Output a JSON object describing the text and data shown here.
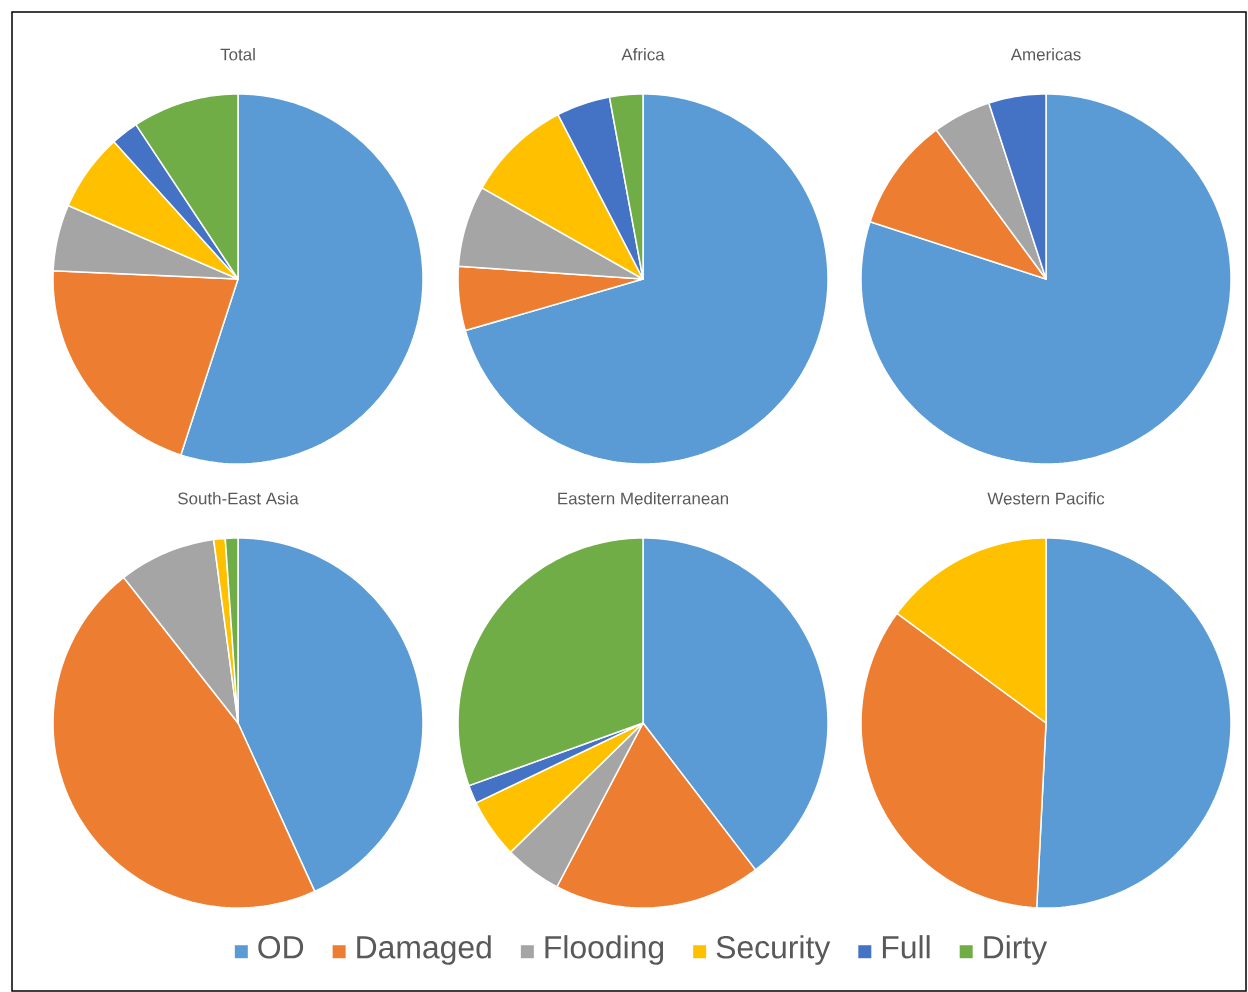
{
  "chart_data": [
    {
      "type": "pie",
      "title": "Total",
      "categories": [
        "OD",
        "Damaged",
        "Flooding",
        "Security",
        "Full",
        "Dirty"
      ],
      "values": [
        55,
        20.7,
        5.8,
        6.8,
        2.4,
        9.3
      ],
      "colors": [
        "#5b9bd5",
        "#ed7d31",
        "#a5a5a5",
        "#ffc000",
        "#4472c4",
        "#70ad47"
      ],
      "legend": "bottom"
    },
    {
      "type": "pie",
      "title": "Africa",
      "values": [
        70.5,
        5.6,
        7.1,
        9.2,
        4.7,
        2.9
      ],
      "colors": [
        "#5b9bd5",
        "#ed7d31",
        "#a5a5a5",
        "#ffc000",
        "#4472c4",
        "#70ad47"
      ]
    },
    {
      "type": "pie",
      "title": "Americas",
      "values": [
        80,
        9.9,
        5.1,
        0,
        5,
        0
      ],
      "colors": [
        "#5b9bd5",
        "#ed7d31",
        "#a5a5a5",
        "#ffc000",
        "#4472c4",
        "#70ad47"
      ]
    },
    {
      "type": "pie",
      "title": "South-East Asia",
      "values": [
        43.2,
        46.2,
        8.5,
        1,
        0,
        1.1
      ],
      "colors": [
        "#5b9bd5",
        "#ed7d31",
        "#a5a5a5",
        "#ffc000",
        "#4472c4",
        "#70ad47"
      ]
    },
    {
      "type": "pie",
      "title": "Eastern Mediterranean",
      "values": [
        39.6,
        18.1,
        5,
        5.2,
        1.6,
        30.5
      ],
      "colors": [
        "#5b9bd5",
        "#ed7d31",
        "#a5a5a5",
        "#ffc000",
        "#4472c4",
        "#70ad47"
      ]
    },
    {
      "type": "pie",
      "title": "Western Pacific",
      "values": [
        50.8,
        34.3,
        0,
        14.9,
        0,
        0
      ],
      "colors": [
        "#5b9bd5",
        "#ed7d31",
        "#a5a5a5",
        "#ffc000",
        "#4472c4",
        "#70ad47"
      ]
    }
  ]
}
